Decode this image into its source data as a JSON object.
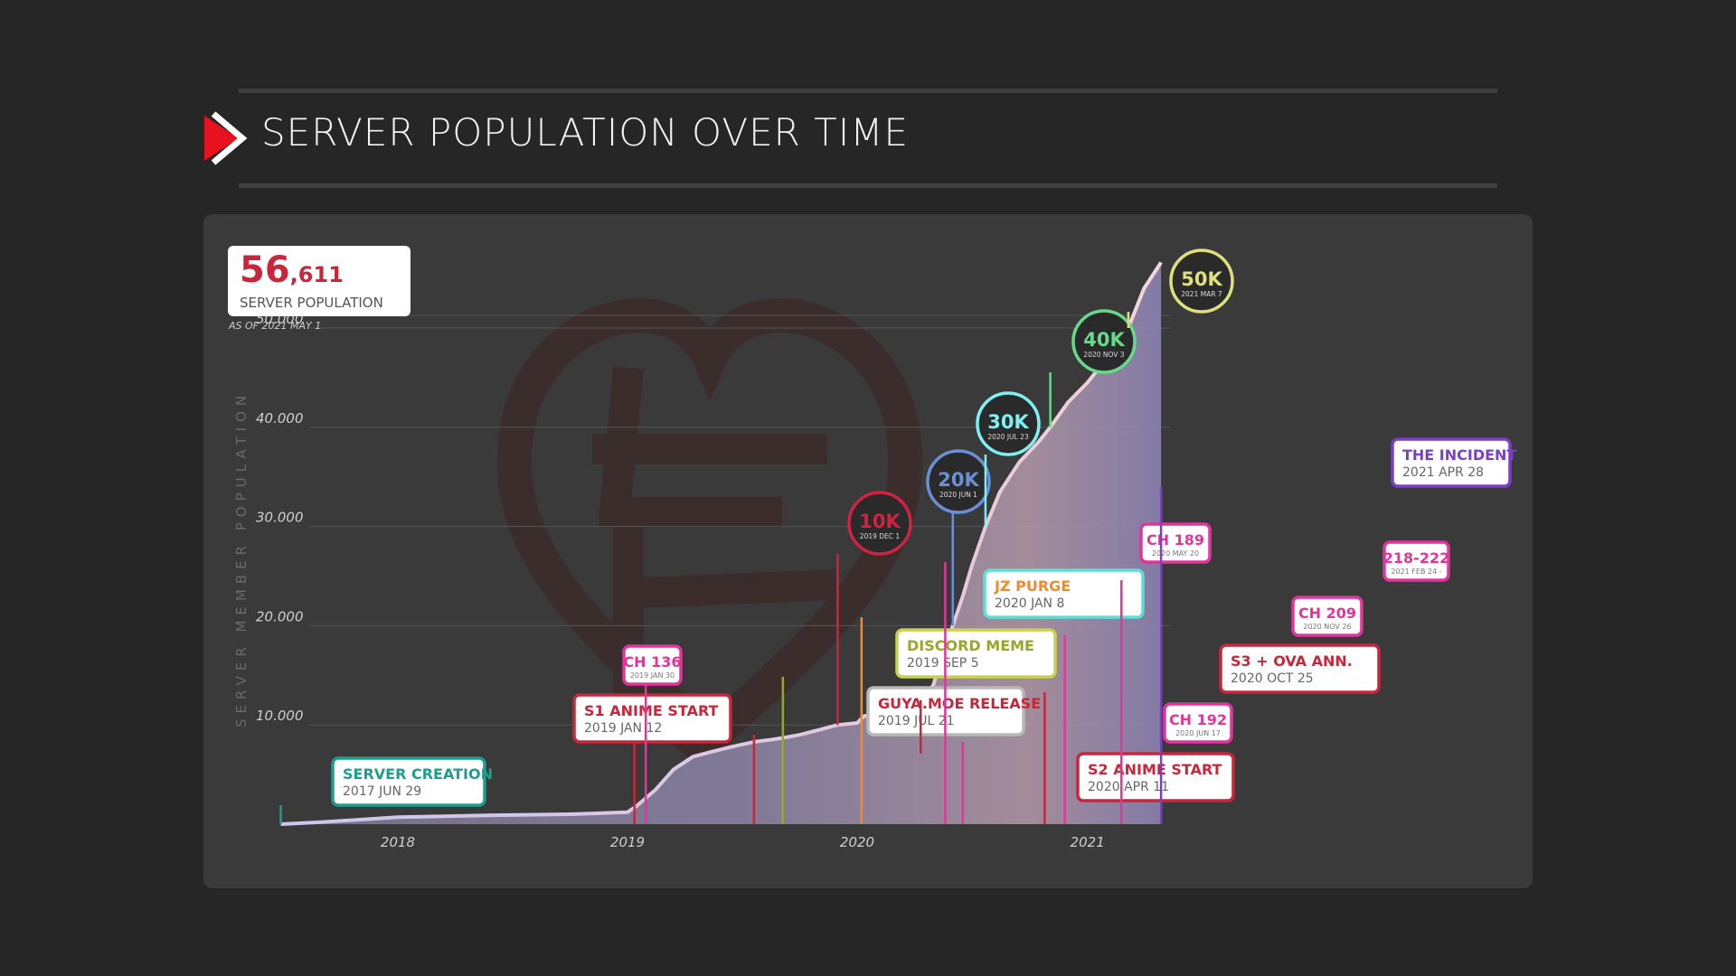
{
  "header": {
    "title": "SERVER POPULATION OVER TIME",
    "accent_color": "#e8121e",
    "icon": "play-arrow-icon"
  },
  "stat": {
    "value_big": "56",
    "value_small": ",611",
    "label": "SERVER POPULATION",
    "as_of": "AS OF 2021 MAY 1"
  },
  "chart_data": {
    "type": "area",
    "ylabel": "SERVER MEMBER POPULATION",
    "xlabel": "",
    "xlim": [
      "2017-06-29",
      "2021-05-07"
    ],
    "ylim": [
      0,
      60000
    ],
    "y_ticks": [
      {
        "value": 10000,
        "label": "10.000"
      },
      {
        "value": 20000,
        "label": "20.000"
      },
      {
        "value": 30000,
        "label": "30.000"
      },
      {
        "value": 40000,
        "label": "40.000"
      },
      {
        "value": 50000,
        "label": "50.000"
      }
    ],
    "x_ticks": [
      {
        "date": "2018-01-01",
        "label": "2018"
      },
      {
        "date": "2019-01-01",
        "label": "2019"
      },
      {
        "date": "2020-01-01",
        "label": "2020"
      },
      {
        "date": "2021-01-01",
        "label": "2021"
      }
    ],
    "grid": true,
    "series": [
      {
        "x": [
          "2017-06-29",
          "2017-09-01",
          "2018-01-01",
          "2018-06-01",
          "2018-10-01",
          "2019-01-01",
          "2019-01-15",
          "2019-02-15",
          "2019-03-15",
          "2019-04-15",
          "2019-05-15",
          "2019-06-15",
          "2019-07-21",
          "2019-08-15",
          "2019-09-05",
          "2019-10-01",
          "2019-11-01",
          "2019-12-01",
          "2020-01-01",
          "2020-01-12",
          "2020-02-15",
          "2020-03-15",
          "2020-04-11",
          "2020-05-01",
          "2020-05-20",
          "2020-06-01",
          "2020-06-17",
          "2020-07-01",
          "2020-07-23",
          "2020-08-15",
          "2020-09-15",
          "2020-10-15",
          "2020-11-03",
          "2020-12-01",
          "2021-01-01",
          "2021-01-20",
          "2021-02-10",
          "2021-03-01",
          "2021-03-07",
          "2021-04-01",
          "2021-04-28"
        ],
        "y": [
          0,
          200,
          700,
          900,
          1000,
          1200,
          1800,
          3500,
          5500,
          6800,
          7300,
          7800,
          8300,
          8500,
          8700,
          9000,
          9500,
          10000,
          10200,
          10900,
          11000,
          11700,
          12500,
          14000,
          18000,
          20000,
          23000,
          26000,
          30000,
          33500,
          36500,
          38500,
          40000,
          42500,
          44500,
          46000,
          47500,
          48500,
          50000,
          54000,
          56611
        ]
      }
    ],
    "milestones": [
      {
        "label": "10K",
        "date": "2019 DEC 1",
        "x": "2019-12-01",
        "color": "#cf2342"
      },
      {
        "label": "20K",
        "date": "2020 JUN 1",
        "x": "2020-06-01",
        "color": "#6a8fd6"
      },
      {
        "label": "30K",
        "date": "2020 JUL 23",
        "x": "2020-07-23",
        "color": "#7ff0f2"
      },
      {
        "label": "40K",
        "date": "2020 NOV 3",
        "x": "2020-11-03",
        "color": "#66d98b"
      },
      {
        "label": "50K",
        "date": "2021 MAR 7",
        "x": "2021-03-07",
        "color": "#dde07c"
      }
    ],
    "events": [
      {
        "title": "SERVER CREATION",
        "date": "2017 JUN 29",
        "x": "2017-06-29",
        "color": "#1d9e8f"
      },
      {
        "title": "S1 ANIME START",
        "date": "2019 JAN 12",
        "x": "2019-01-12",
        "color": "#c8263b"
      },
      {
        "title": "CH 136",
        "date": "2019 JAN 30",
        "x": "2019-01-30",
        "color": "#e2359b",
        "small": true
      },
      {
        "title": "GUYA.MOE RELEASE",
        "date": "2019 JUL 21",
        "x": "2019-07-21",
        "color": "#c8263b",
        "border": "#b8b8b8"
      },
      {
        "title": "DISCORD MEME",
        "date": "2019 SEP 5",
        "x": "2019-09-05",
        "color": "#97a827",
        "border": "#c6d44a"
      },
      {
        "title": "JZ PURGE",
        "date": "2020 JAN 8",
        "x": "2020-01-08",
        "color": "#f08a2a",
        "border": "#5be0d6"
      },
      {
        "title": "S2 ANIME START",
        "date": "2020 APR 11",
        "x": "2020-04-11",
        "color": "#c8263b"
      },
      {
        "title": "CH 189",
        "date": "2020 MAY 20",
        "x": "2020-05-20",
        "color": "#e2359b",
        "small": true
      },
      {
        "title": "CH 192",
        "date": "2020 JUN 17",
        "x": "2020-06-17",
        "color": "#e2359b",
        "small": true
      },
      {
        "title": "S3 + OVA ANN.",
        "date": "2020 OCT 25",
        "x": "2020-10-25",
        "color": "#c8263b"
      },
      {
        "title": "CH 209",
        "date": "2020 NOV 26",
        "x": "2020-11-26",
        "color": "#e2359b",
        "small": true
      },
      {
        "title": "218-222",
        "date": "2021 FEB 24 -",
        "x": "2021-02-24",
        "color": "#e2359b",
        "small": true
      },
      {
        "title": "THE INCIDENT",
        "date": "2021 APR 28",
        "x": "2021-04-28",
        "color": "#7a3fc4"
      }
    ]
  }
}
